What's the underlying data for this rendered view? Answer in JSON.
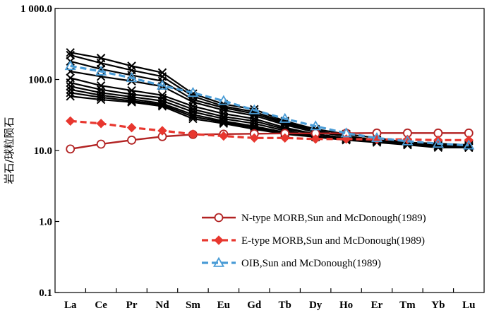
{
  "chart_data": {
    "type": "line",
    "ylabel": "岩石/球粒陨石",
    "yscale": "log",
    "ylim": [
      0.1,
      1000
    ],
    "yticks": [
      "0.1",
      "1.0",
      "10.0",
      "100.0",
      "1 000.0"
    ],
    "categories": [
      "La",
      "Ce",
      "Pr",
      "Nd",
      "Sm",
      "Eu",
      "Gd",
      "Tb",
      "Dy",
      "Ho",
      "Er",
      "Tm",
      "Yb",
      "Lu"
    ],
    "samples": [
      [
        240,
        200,
        155,
        125,
        63,
        45,
        38,
        26,
        20,
        17,
        15,
        13,
        12.5,
        12
      ],
      [
        220,
        170,
        135,
        110,
        58,
        42,
        35,
        25,
        19,
        16,
        14,
        12.5,
        11.5,
        11
      ],
      [
        180,
        140,
        115,
        95,
        52,
        40,
        33,
        24,
        19,
        16,
        14,
        13,
        12,
        11.5
      ],
      [
        130,
        110,
        95,
        80,
        48,
        37,
        31,
        23,
        18,
        16,
        14,
        12.5,
        11.5,
        11
      ],
      [
        105,
        82,
        70,
        60,
        42,
        33,
        28,
        21,
        17,
        15,
        14,
        12.5,
        11.5,
        11.5
      ],
      [
        90,
        72,
        62,
        55,
        38,
        30,
        26,
        20,
        17,
        15,
        13.5,
        12,
        11.5,
        11
      ],
      [
        80,
        65,
        57,
        50,
        35,
        28,
        24,
        19,
        16,
        14.5,
        13.5,
        12,
        11,
        11
      ],
      [
        72,
        60,
        53,
        46,
        32,
        26,
        22,
        18,
        16,
        14.5,
        13.5,
        12.5,
        11.5,
        11.5
      ],
      [
        65,
        56,
        50,
        44,
        30,
        25,
        21,
        17.5,
        15.5,
        14,
        13,
        12,
        11.5,
        11
      ],
      [
        58,
        52,
        48,
        42,
        28,
        24,
        20,
        17,
        15.5,
        14.5,
        13.5,
        12.5,
        11.5,
        11.5
      ]
    ],
    "series": [
      {
        "name": "N-type MORB,Sun and McDonough(1989)",
        "color": "#b22222",
        "dash": "solid",
        "marker": "circle",
        "values": [
          10.5,
          12.3,
          14,
          15.7,
          16.8,
          17,
          17.2,
          17.4,
          17.4,
          17.5,
          17.6,
          17.6,
          17.6,
          17.6
        ]
      },
      {
        "name": "E-type MORB,Sun and McDonough(1989)",
        "color": "#e8372f",
        "dash": "dashed",
        "marker": "diamond",
        "values": [
          26,
          24,
          21,
          19,
          17,
          16,
          15,
          15,
          14.5,
          14.5,
          14.3,
          14.3,
          14,
          14
        ]
      },
      {
        "name": "OIB,Sun and McDonough(1989)",
        "color": "#4a9cd6",
        "dash": "dashed",
        "marker": "triangle",
        "values": [
          155,
          130,
          105,
          82,
          65,
          50,
          37,
          28,
          22,
          17.5,
          15,
          13.5,
          12.5,
          11.8
        ]
      }
    ]
  }
}
